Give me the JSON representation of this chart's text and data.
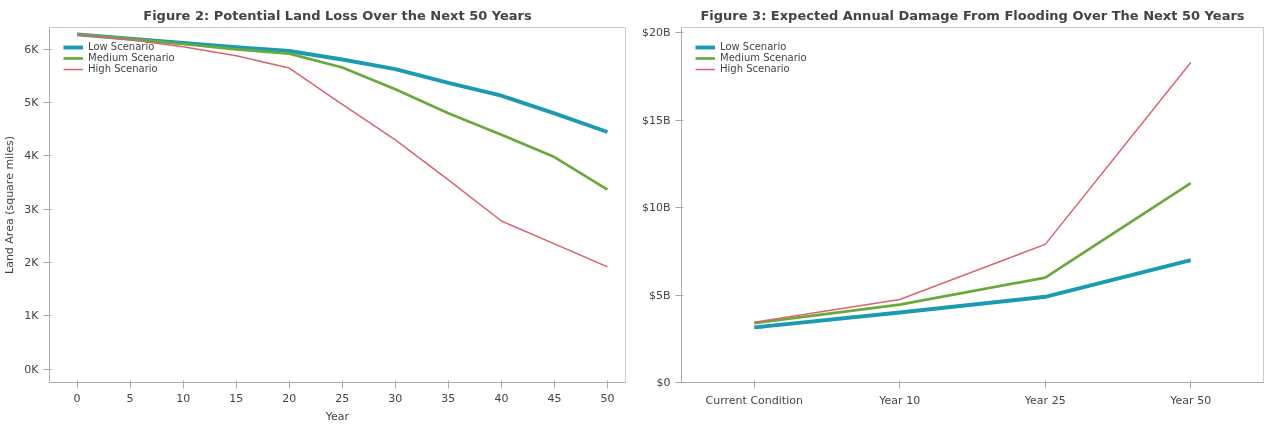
{
  "chart_data": [
    {
      "type": "line",
      "title": "Figure 2: Potential Land Loss Over the Next 50 Years",
      "xlabel": "Year",
      "ylabel": "Land Area (square miles)",
      "x": [
        0,
        5,
        10,
        15,
        20,
        25,
        30,
        35,
        40,
        45,
        50
      ],
      "series": [
        {
          "name": "Low Scenario",
          "color": "#1a9bb0",
          "values": [
            6280,
            6200,
            6120,
            6040,
            5970,
            5810,
            5630,
            5370,
            5130,
            4800,
            4450
          ]
        },
        {
          "name": "Medium Scenario",
          "color": "#6aaa3c",
          "values": [
            6280,
            6200,
            6100,
            6000,
            5920,
            5660,
            5250,
            4800,
            4400,
            3980,
            3370
          ]
        },
        {
          "name": "High Scenario",
          "color": "#d9646e",
          "values": [
            6280,
            6180,
            6050,
            5880,
            5650,
            4970,
            4300,
            3550,
            2780,
            2350,
            1920
          ]
        }
      ],
      "xlim": [
        -2.6,
        51.7
      ],
      "xticks": [
        0,
        5,
        10,
        15,
        20,
        25,
        30,
        35,
        40,
        45,
        50
      ],
      "ylim": [
        -250,
        6410
      ],
      "yticks": [
        {
          "value": 0,
          "label": "0K"
        },
        {
          "value": 1000,
          "label": "1K"
        },
        {
          "value": 2000,
          "label": "2K"
        },
        {
          "value": 3000,
          "label": "3K"
        },
        {
          "value": 4000,
          "label": "4K"
        },
        {
          "value": 5000,
          "label": "5K"
        },
        {
          "value": 6000,
          "label": "6K"
        }
      ],
      "grid": false,
      "legend": "top left"
    },
    {
      "type": "line",
      "title": "Figure 3: Expected Annual Damage From Flooding Over The Next 50 Years",
      "categories": [
        "Current Condition",
        "Year 10",
        "Year 25",
        "Year 50"
      ],
      "series": [
        {
          "name": "Low Scenario",
          "color": "#1a9bb0",
          "values": [
            3.15,
            4.0,
            4.9,
            7.0
          ]
        },
        {
          "name": "Medium Scenario",
          "color": "#6aaa3c",
          "values": [
            3.4,
            4.45,
            6.0,
            11.4
          ]
        },
        {
          "name": "High Scenario",
          "color": "#d9646e",
          "values": [
            3.45,
            4.75,
            7.9,
            18.3
          ]
        }
      ],
      "ylim": [
        0,
        20.3
      ],
      "yticks": [
        {
          "value": 0,
          "label": "$0"
        },
        {
          "value": 5,
          "label": "$5B"
        },
        {
          "value": 10,
          "label": "$10B"
        },
        {
          "value": 15,
          "label": "$15B"
        },
        {
          "value": 20,
          "label": "$20B"
        }
      ],
      "grid": false,
      "legend": "top left"
    }
  ]
}
